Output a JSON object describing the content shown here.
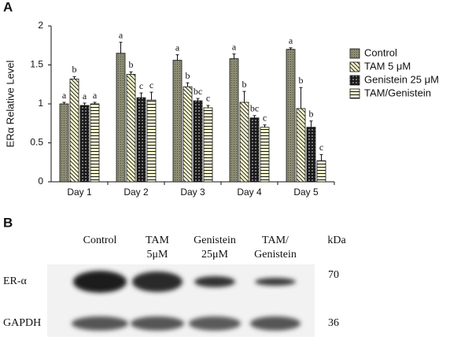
{
  "chart_data": {
    "type": "bar",
    "panel": "A",
    "ylabel": "ERα Relative Level",
    "categories": [
      "Day 1",
      "Day 2",
      "Day 3",
      "Day 4",
      "Day 5"
    ],
    "ylim": [
      0,
      2
    ],
    "yticks": [
      0,
      0.5,
      1,
      1.5,
      2
    ],
    "series": [
      {
        "name": "Control",
        "color": "#8c8c74",
        "values": [
          1.0,
          1.65,
          1.56,
          1.58,
          1.7
        ],
        "errors": [
          0.02,
          0.14,
          0.07,
          0.06,
          0.02
        ],
        "labels": [
          "a",
          "a",
          "a",
          "a",
          "a"
        ]
      },
      {
        "name": "TAM 5 μM",
        "color": "#fafad2",
        "values": [
          1.32,
          1.38,
          1.22,
          1.02,
          0.94
        ],
        "errors": [
          0.03,
          0.03,
          0.05,
          0.14,
          0.27
        ],
        "labels": [
          "b",
          "b",
          "b",
          "b",
          "b"
        ]
      },
      {
        "name": "Genistein 25 μM",
        "color": "#1a1a1a",
        "values": [
          0.98,
          1.08,
          1.04,
          0.82,
          0.7
        ],
        "errors": [
          0.03,
          0.06,
          0.03,
          0.03,
          0.08
        ],
        "labels": [
          "a",
          "c",
          "bc",
          "bc",
          "b"
        ]
      },
      {
        "name": "TAM/Genistein",
        "color": "#fafad2",
        "values": [
          1.0,
          1.05,
          0.95,
          0.7,
          0.27
        ],
        "errors": [
          0.02,
          0.1,
          0.03,
          0.03,
          0.08
        ],
        "labels": [
          "a",
          "c",
          "c",
          "c",
          "c"
        ]
      }
    ]
  },
  "blot": {
    "panel": "B",
    "lanes": [
      [
        "Control"
      ],
      [
        "TAM",
        "5μM"
      ],
      [
        "Genistein",
        "25μM"
      ],
      [
        "TAM/",
        "Genistein"
      ]
    ],
    "unit": "kDa",
    "rows": [
      {
        "name": "ER-α",
        "size": "70"
      },
      {
        "name": "GAPDH",
        "size": "36"
      }
    ]
  }
}
